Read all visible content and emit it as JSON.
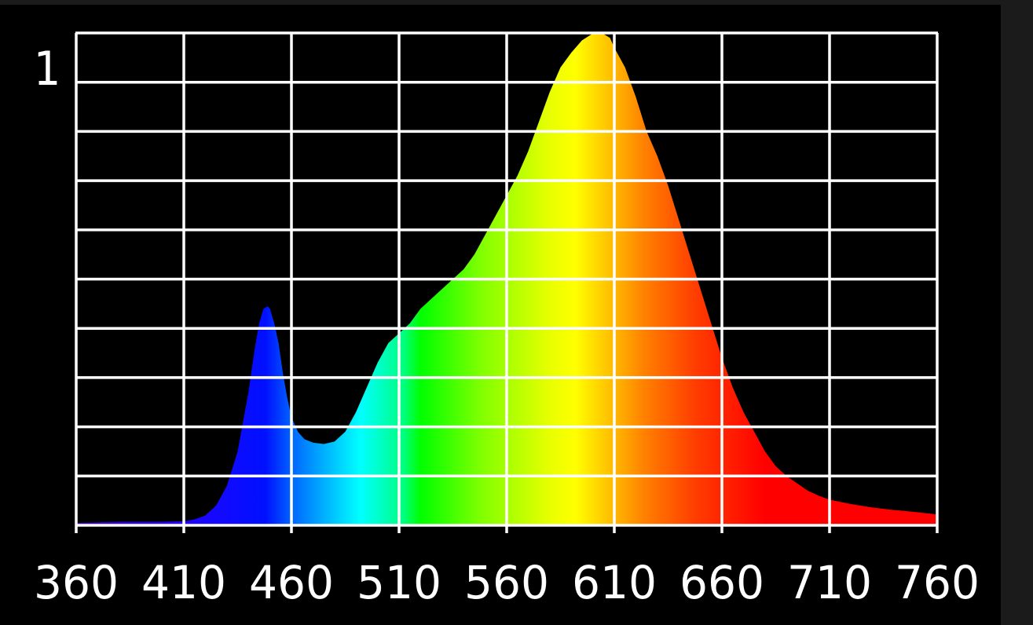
{
  "chart_data": {
    "type": "area",
    "title": "",
    "xlabel": "",
    "ylabel": "",
    "xlim": [
      360,
      760
    ],
    "ylim": [
      0,
      1
    ],
    "grid": true,
    "y_tick_label": "1",
    "x_ticks": [
      360,
      410,
      460,
      510,
      560,
      610,
      660,
      710,
      760
    ],
    "series": [
      {
        "x": [
          360,
          370,
          380,
          390,
          400,
          410,
          415,
          420,
          425,
          430,
          435,
          440,
          443,
          445,
          447,
          449,
          450,
          452,
          454,
          456,
          458,
          460,
          463,
          466,
          470,
          475,
          480,
          485,
          490,
          495,
          500,
          505,
          510,
          515,
          520,
          525,
          530,
          535,
          540,
          545,
          550,
          555,
          560,
          565,
          570,
          575,
          580,
          585,
          590,
          595,
          600,
          603,
          605,
          608,
          610,
          615,
          620,
          625,
          630,
          635,
          640,
          645,
          650,
          655,
          660,
          665,
          670,
          675,
          680,
          685,
          690,
          695,
          700,
          705,
          710,
          720,
          730,
          740,
          750,
          760
        ],
        "y": [
          0.005,
          0.006,
          0.007,
          0.007,
          0.007,
          0.008,
          0.012,
          0.02,
          0.04,
          0.08,
          0.15,
          0.27,
          0.36,
          0.41,
          0.44,
          0.445,
          0.44,
          0.41,
          0.37,
          0.31,
          0.26,
          0.22,
          0.19,
          0.175,
          0.168,
          0.165,
          0.17,
          0.19,
          0.23,
          0.28,
          0.33,
          0.37,
          0.39,
          0.41,
          0.44,
          0.46,
          0.48,
          0.5,
          0.52,
          0.55,
          0.59,
          0.63,
          0.67,
          0.71,
          0.76,
          0.82,
          0.88,
          0.93,
          0.96,
          0.985,
          0.999,
          1.0,
          0.998,
          0.99,
          0.97,
          0.93,
          0.87,
          0.8,
          0.75,
          0.69,
          0.62,
          0.55,
          0.48,
          0.41,
          0.34,
          0.28,
          0.23,
          0.19,
          0.15,
          0.12,
          0.1,
          0.085,
          0.07,
          0.06,
          0.052,
          0.043,
          0.036,
          0.031,
          0.027,
          0.022
        ]
      }
    ]
  }
}
